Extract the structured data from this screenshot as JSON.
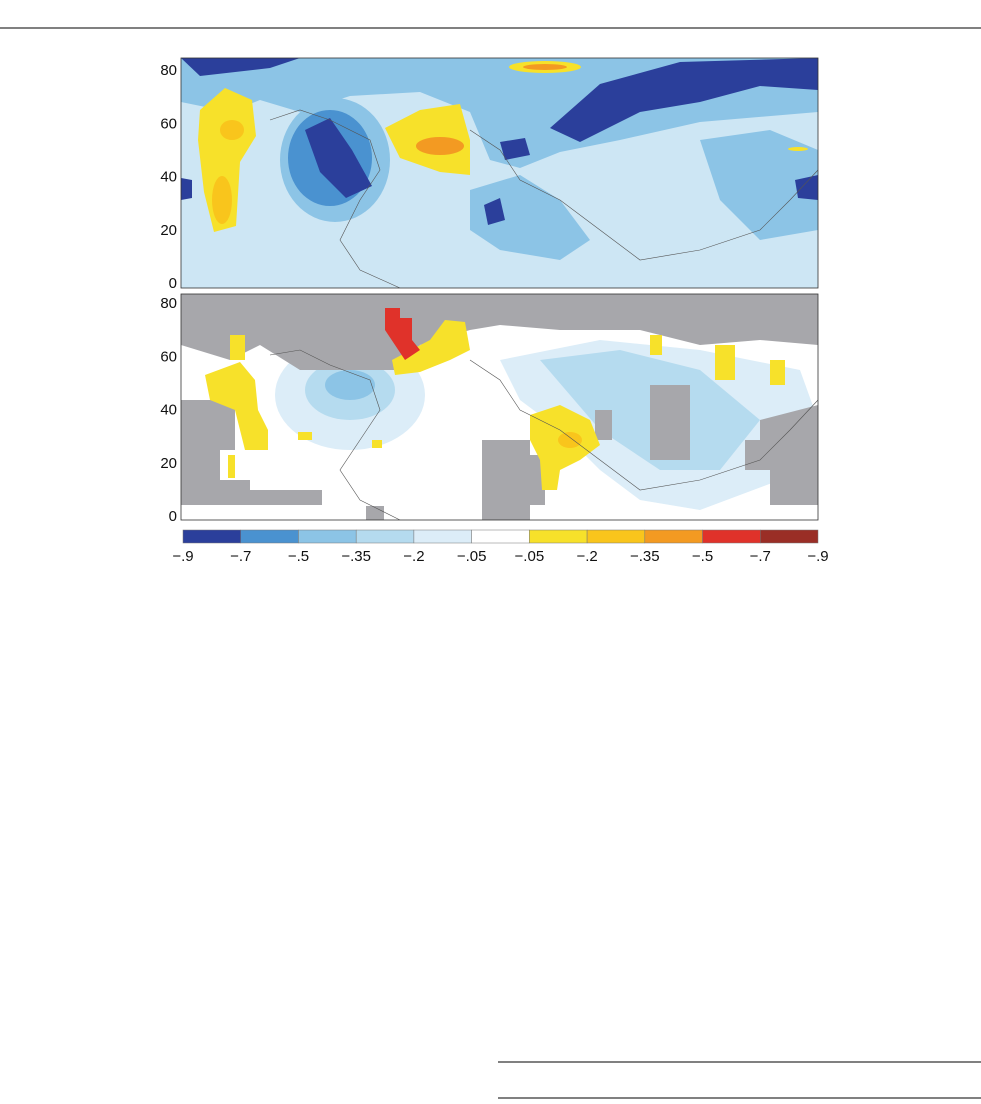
{
  "figure": {
    "panels": [
      {
        "yticks": [
          "0",
          "20",
          "40",
          "60",
          "80"
        ]
      },
      {
        "yticks": [
          "0",
          "20",
          "40",
          "60",
          "80"
        ]
      }
    ],
    "colorbar": {
      "labels": [
        "−.9",
        "−.7",
        "−.5",
        "−.35",
        "−.2",
        "−.05",
        "−.05",
        "−.2",
        "−.35",
        "−.5",
        "−.7",
        "−.9"
      ],
      "colors": [
        "#2b3f9b",
        "#4a92d0",
        "#8cc4e6",
        "#b5dbef",
        "#dcedf8",
        "#ffffff",
        "#f7e12a",
        "#f9c51c",
        "#f39a22",
        "#e0322a",
        "#9a2e26"
      ]
    }
  }
}
